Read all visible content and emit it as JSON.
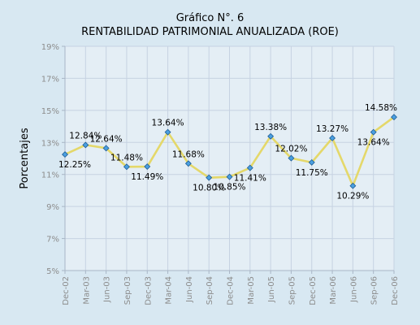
{
  "chart_data": {
    "type": "line",
    "title": [
      "Gráfico N°. 6",
      "RENTABILIDAD PATRIMONIAL ANUALIZADA (ROE)"
    ],
    "ylabel": "Porcentajes",
    "xlabel": "",
    "ylim": [
      5,
      19
    ],
    "yticks": [
      5,
      7,
      9,
      11,
      13,
      15,
      17,
      19
    ],
    "ytick_suffix": "%",
    "grid": true,
    "x": [
      "Dec-02",
      "Mar-03",
      "Jun-03",
      "Sep-03",
      "Dec-03",
      "Mar-04",
      "Jun-04",
      "Sep-04",
      "Dec-04",
      "Mar-05",
      "Jun-05",
      "Sep-05",
      "Dec-05",
      "Mar-06",
      "Jun-06",
      "Sep-06",
      "Dec-06"
    ],
    "series": [
      {
        "values": [
          12.25,
          12.84,
          12.64,
          11.48,
          11.49,
          13.64,
          11.68,
          10.8,
          10.85,
          11.41,
          13.38,
          12.02,
          11.75,
          13.27,
          10.29,
          13.64,
          14.58
        ],
        "labels": [
          "12.25%",
          "12.84%",
          "12.64%",
          "11.48%",
          "11.49%",
          "13.64%",
          "11.68%",
          "10.80%",
          "10.85%",
          "11.41%",
          "13.38%",
          "12.02%",
          "11.75%",
          "13.27%",
          "10.29%",
          "13.64%",
          "14.58%"
        ],
        "label_pos": [
          "below",
          "above",
          "above",
          "above",
          "below",
          "above",
          "above",
          "below",
          "below",
          "below",
          "above",
          "above",
          "below",
          "above",
          "below",
          "below",
          "above"
        ]
      }
    ],
    "colors": {
      "background": "#d8e8f2",
      "plot_background": "#e4eef5",
      "grid": "#c6d2e2",
      "axis": "#a9b6c6",
      "line": "#e4d86a",
      "marker_fill": "#4a9fe0",
      "marker_stroke": "#1f5d95"
    }
  }
}
